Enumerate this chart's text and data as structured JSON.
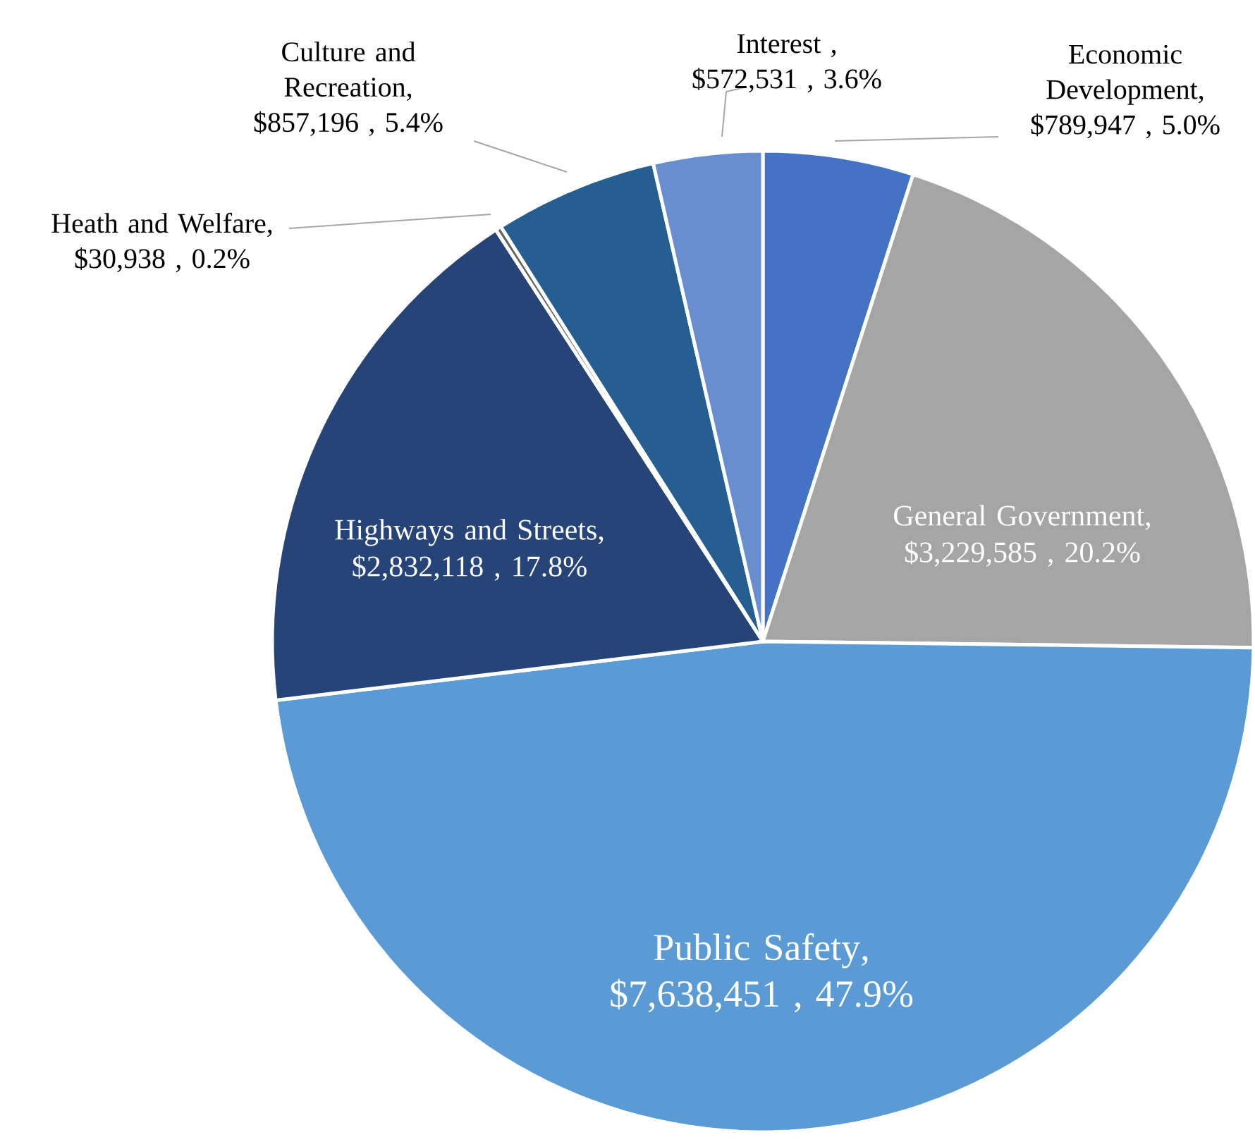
{
  "chart_data": {
    "type": "pie",
    "categories": [
      "Economic Development",
      "General Government",
      "Public Safety",
      "Highways and Streets",
      "Heath and Welfare",
      "Culture and Recreation",
      "Interest"
    ],
    "values": [
      789947,
      3229585,
      7638451,
      2832118,
      30938,
      857196,
      572531
    ],
    "colors": [
      "#4472c4",
      "#a5a5a5",
      "#5b9bd5",
      "#264478",
      "#636363",
      "#255e91",
      "#698ed0"
    ],
    "value_labels": [
      ", $789,947 , 5.0%",
      ", $3,229,585 , 20.2%",
      ", $7,638,451 , 47.9%",
      ", $2,832,118 , 17.8%",
      ", $30,938 , 0.2%",
      ", $857,196 , 5.4%",
      " , $572,531 , 3.6%"
    ]
  }
}
